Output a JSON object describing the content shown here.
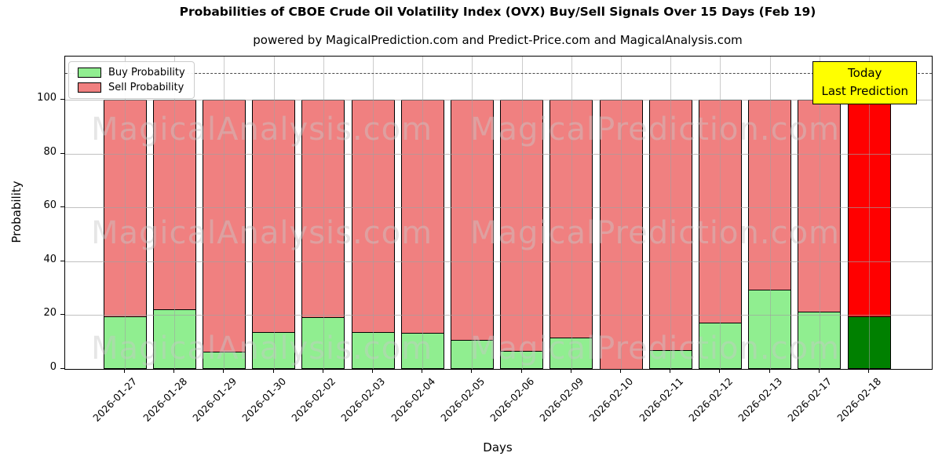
{
  "header": {
    "title": "Probabilities of CBOE Crude Oil Volatility Index (OVX) Buy/Sell Signals Over 15 Days (Feb 19)",
    "subtitle": "powered by MagicalPrediction.com and Predict-Price.com and MagicalAnalysis.com"
  },
  "axes": {
    "xlabel": "Days",
    "ylabel": "Probability",
    "yticks": [
      0,
      20,
      40,
      60,
      80,
      100
    ]
  },
  "legend": {
    "items": [
      {
        "label": "Buy Probability",
        "color": "#90EE90"
      },
      {
        "label": "Sell Probability",
        "color": "#F08080"
      }
    ]
  },
  "annotation": {
    "line1": "Today",
    "line2": "Last Prediction",
    "bg_color": "#FFFF00"
  },
  "watermarks": {
    "left": "MagicalAnalysis.com",
    "right": "MagicalPrediction.com"
  },
  "chart_data": {
    "type": "bar",
    "stacked": true,
    "title": "Probabilities of CBOE Crude Oil Volatility Index (OVX) Buy/Sell Signals Over 15 Days (Feb 19)",
    "xlabel": "Days",
    "ylabel": "Probability",
    "categories": [
      "2026-01-27",
      "2026-01-28",
      "2026-01-29",
      "2026-01-30",
      "2026-02-02",
      "2026-02-03",
      "2026-02-04",
      "2026-02-05",
      "2026-02-06",
      "2026-02-09",
      "2026-02-10",
      "2026-02-11",
      "2026-02-12",
      "2026-02-13",
      "2026-02-17",
      "2026-02-18"
    ],
    "series": [
      {
        "name": "Buy Probability",
        "color": "#90EE90",
        "values": [
          19.4,
          22.1,
          6.5,
          13.6,
          19.2,
          13.6,
          13.4,
          10.8,
          6.6,
          11.6,
          0.0,
          7.0,
          17.1,
          29.4,
          21.3,
          19.4
        ]
      },
      {
        "name": "Sell Probability",
        "color": "#F08080",
        "values": [
          80.6,
          77.9,
          93.5,
          86.4,
          80.8,
          86.4,
          86.6,
          89.2,
          93.4,
          88.4,
          100.0,
          93.0,
          82.9,
          70.6,
          78.7,
          80.6
        ]
      }
    ],
    "last_bar_override": {
      "buy_color": "#008000",
      "sell_color": "#FF0000"
    },
    "bar_edge_color": "#000000",
    "ylim": [
      0,
      116
    ],
    "dashed_hline_y": 110,
    "grid": true,
    "legend_position": "upper left"
  }
}
